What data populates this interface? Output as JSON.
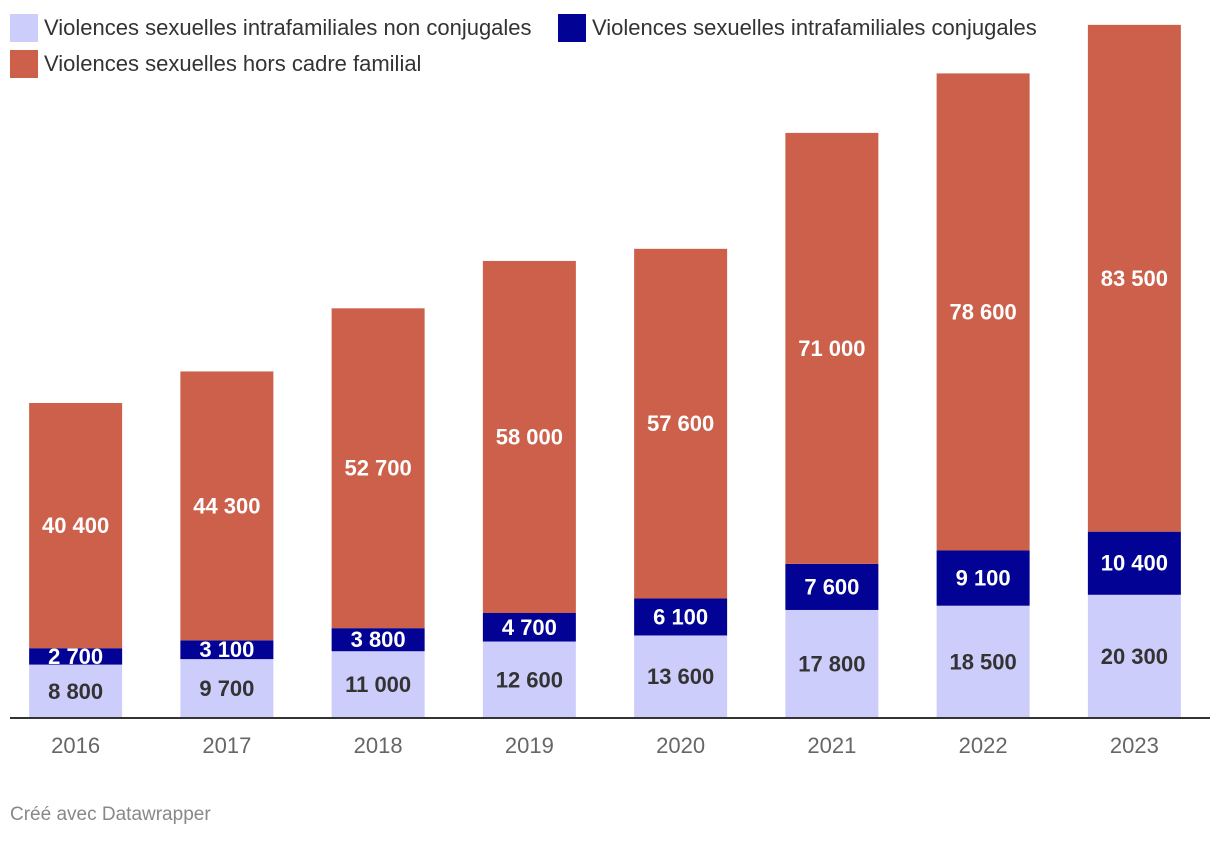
{
  "chart_data": {
    "type": "bar",
    "stacked": true,
    "categories": [
      "2016",
      "2017",
      "2018",
      "2019",
      "2020",
      "2021",
      "2022",
      "2023"
    ],
    "series": [
      {
        "name": "Violences sexuelles intrafamiliales non conjugales",
        "color": "#cdcdfc",
        "label_color": "#333333",
        "values": [
          8800,
          9700,
          11000,
          12600,
          13600,
          17800,
          18500,
          20300
        ],
        "labels": [
          "8 800",
          "9 700",
          "11 000",
          "12 600",
          "13 600",
          "17 800",
          "18 500",
          "20 300"
        ]
      },
      {
        "name": "Violences sexuelles intrafamiliales conjugales",
        "color": "#020294",
        "label_color": "#ffffff",
        "values": [
          2700,
          3100,
          3800,
          4700,
          6100,
          7600,
          9100,
          10400
        ],
        "labels": [
          "2 700",
          "3 100",
          "3 800",
          "4 700",
          "6 100",
          "7 600",
          "9 100",
          "10 400"
        ]
      },
      {
        "name": "Violences sexuelles hors cadre familial",
        "color": "#cc604a",
        "label_color": "#ffffff",
        "values": [
          40400,
          44300,
          52700,
          58000,
          57600,
          71000,
          78600,
          83500
        ],
        "labels": [
          "40 400",
          "44 300",
          "52 700",
          "58 000",
          "57 600",
          "71 000",
          "78 600",
          "83 500"
        ]
      }
    ],
    "ylim": [
      0,
      115000
    ],
    "legend_position": "top-left",
    "grid": false
  },
  "credit": "Créé avec Datawrapper"
}
